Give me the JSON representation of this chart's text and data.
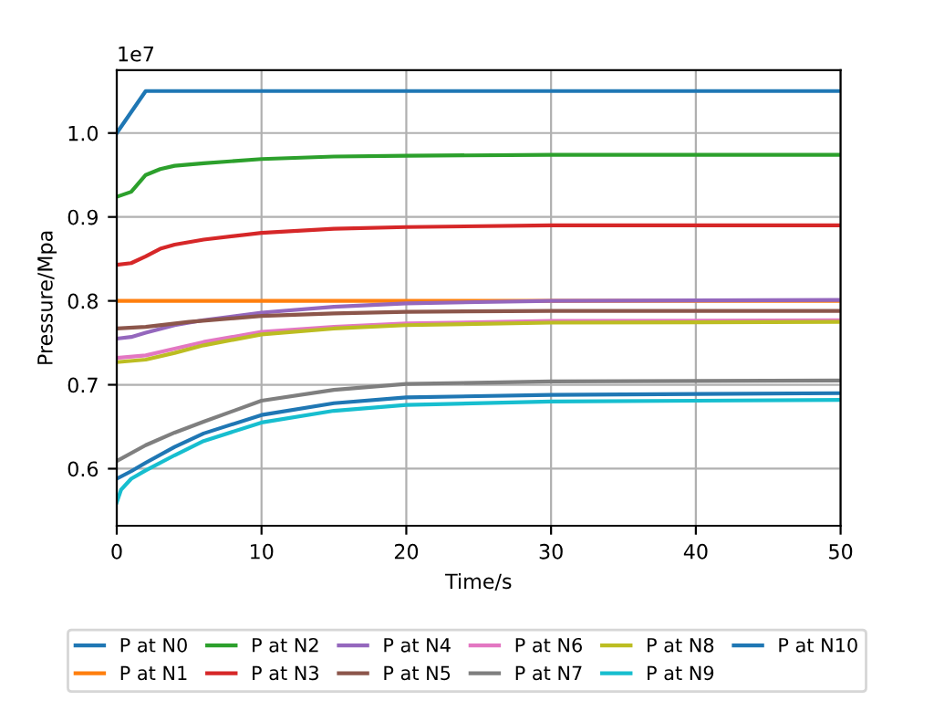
{
  "chart_data": {
    "type": "line",
    "xlabel": "Time/s",
    "ylabel": "Pressure/Mpa",
    "annotations": [
      "1e7"
    ],
    "xlim": [
      0,
      50
    ],
    "xticks": [
      0,
      10,
      20,
      30,
      40,
      50
    ],
    "ylim": [
      0.532,
      1.075
    ],
    "yticks": [
      {
        "value": 0.6,
        "label": "0.6"
      },
      {
        "value": 0.7,
        "label": "0.7"
      },
      {
        "value": 0.8,
        "label": "0.8"
      },
      {
        "value": 0.9,
        "label": "0.9"
      },
      {
        "value": 1.0,
        "label": "1.0"
      }
    ],
    "grid": true,
    "legend": "bottom",
    "series": [
      {
        "name": "P at N0",
        "color": "#1f77b4",
        "x": [
          0,
          2,
          50
        ],
        "values": [
          1.0,
          1.05,
          1.05
        ]
      },
      {
        "name": "P at N1",
        "color": "#ff7f0e",
        "x": [
          0,
          50
        ],
        "values": [
          0.8,
          0.8
        ]
      },
      {
        "name": "P at N2",
        "color": "#2ca02c",
        "x": [
          0,
          1,
          2,
          3,
          4,
          6,
          10,
          15,
          20,
          30,
          50
        ],
        "values": [
          0.924,
          0.93,
          0.95,
          0.957,
          0.961,
          0.964,
          0.969,
          0.972,
          0.973,
          0.974,
          0.974
        ]
      },
      {
        "name": "P at N3",
        "color": "#d62728",
        "x": [
          0,
          1,
          2,
          3,
          4,
          6,
          10,
          15,
          20,
          30,
          50
        ],
        "values": [
          0.843,
          0.845,
          0.853,
          0.862,
          0.867,
          0.873,
          0.881,
          0.886,
          0.888,
          0.89,
          0.89
        ]
      },
      {
        "name": "P at N4",
        "color": "#9467bd",
        "x": [
          0,
          1,
          2,
          4,
          6,
          10,
          15,
          20,
          30,
          50
        ],
        "values": [
          0.755,
          0.757,
          0.762,
          0.771,
          0.777,
          0.786,
          0.793,
          0.797,
          0.8,
          0.801
        ]
      },
      {
        "name": "P at N5",
        "color": "#8c564b",
        "x": [
          0,
          2,
          5,
          10,
          15,
          20,
          30,
          50
        ],
        "values": [
          0.767,
          0.769,
          0.775,
          0.782,
          0.785,
          0.787,
          0.788,
          0.788
        ]
      },
      {
        "name": "P at N6",
        "color": "#e377c2",
        "x": [
          0,
          2,
          4,
          6,
          10,
          15,
          20,
          30,
          50
        ],
        "values": [
          0.732,
          0.735,
          0.743,
          0.751,
          0.763,
          0.769,
          0.773,
          0.776,
          0.777
        ]
      },
      {
        "name": "P at N7",
        "color": "#7f7f7f",
        "x": [
          0,
          2,
          4,
          6,
          10,
          15,
          20,
          30,
          50
        ],
        "values": [
          0.609,
          0.628,
          0.643,
          0.656,
          0.681,
          0.694,
          0.701,
          0.704,
          0.705
        ]
      },
      {
        "name": "P at N8",
        "color": "#bcbd22",
        "x": [
          0,
          2,
          4,
          6,
          10,
          15,
          20,
          30,
          50
        ],
        "values": [
          0.727,
          0.73,
          0.738,
          0.747,
          0.76,
          0.767,
          0.771,
          0.774,
          0.775
        ]
      },
      {
        "name": "P at N9",
        "color": "#17becf",
        "x": [
          0,
          0.3,
          1,
          2,
          4,
          6,
          10,
          15,
          20,
          30,
          50
        ],
        "values": [
          0.56,
          0.575,
          0.588,
          0.598,
          0.616,
          0.633,
          0.655,
          0.669,
          0.676,
          0.68,
          0.682
        ]
      },
      {
        "name": "P at N10",
        "color": "#1f77b4",
        "x": [
          0,
          1,
          2,
          4,
          6,
          10,
          15,
          20,
          30,
          50
        ],
        "values": [
          0.588,
          0.597,
          0.607,
          0.626,
          0.642,
          0.664,
          0.678,
          0.685,
          0.688,
          0.69
        ]
      }
    ]
  }
}
